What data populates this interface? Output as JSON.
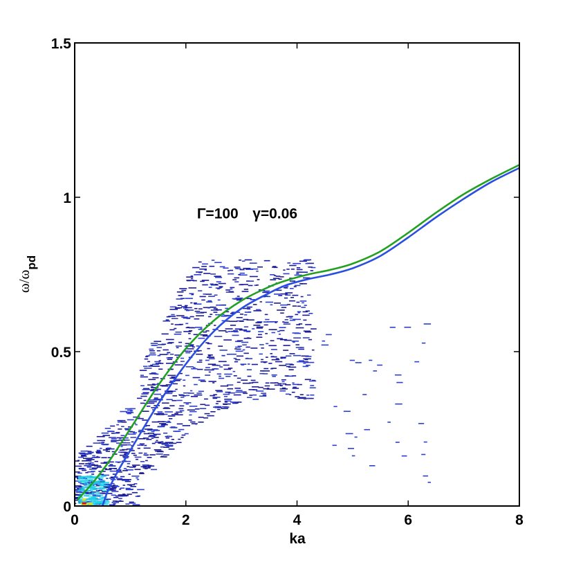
{
  "chart_data": {
    "type": "heatmap",
    "title": "",
    "xlabel": "ka",
    "ylabel": {
      "base": "ω/ω",
      "sub": "pd"
    },
    "xlim": [
      0,
      8
    ],
    "ylim": [
      0,
      1.5
    ],
    "xticks": [
      {
        "value": 0,
        "label": "0"
      },
      {
        "value": 2,
        "label": "2"
      },
      {
        "value": 4,
        "label": "4"
      },
      {
        "value": 6,
        "label": "6"
      },
      {
        "value": 8,
        "label": "8"
      }
    ],
    "yticks": [
      {
        "value": 0,
        "label": "0"
      },
      {
        "value": 0.5,
        "label": "0.5"
      },
      {
        "value": 1,
        "label": "1"
      },
      {
        "value": 1.5,
        "label": "1.5"
      }
    ],
    "grid": false,
    "annotations": [
      {
        "text": "Γ=100",
        "x": 2.2,
        "y": 0.95
      },
      {
        "text": "γ=0.06",
        "x": 3.2,
        "y": 0.95
      }
    ],
    "colors": {
      "line_green": "#22a022",
      "line_blue": "#2a4ee0",
      "cloud_dark": "#1a1a9a",
      "cloud_mid": "#2b3fd0",
      "hot_cyan": "#22d0e8",
      "hot_yellow": "#e8e020",
      "hot_red": "#e01010"
    },
    "series": [
      {
        "color": "green",
        "x": [
          0.05,
          0.3,
          0.6,
          1.0,
          1.5,
          2.0,
          2.5,
          3.0,
          3.5,
          3.8,
          4.2,
          4.6,
          5.0,
          5.5,
          6.0,
          6.5,
          7.0,
          7.5,
          8.0
        ],
        "y": [
          0.02,
          0.07,
          0.14,
          0.25,
          0.39,
          0.51,
          0.6,
          0.665,
          0.71,
          0.73,
          0.75,
          0.765,
          0.785,
          0.825,
          0.885,
          0.95,
          1.01,
          1.06,
          1.105
        ]
      },
      {
        "color": "blue",
        "x": [
          0.5,
          0.6,
          0.8,
          1.0,
          1.5,
          2.0,
          2.5,
          3.0,
          3.5,
          3.8,
          4.2,
          4.6,
          5.0,
          5.5,
          6.0,
          6.5,
          7.0,
          7.5,
          8.0
        ],
        "y": [
          0.0,
          0.05,
          0.12,
          0.18,
          0.33,
          0.46,
          0.565,
          0.64,
          0.69,
          0.715,
          0.735,
          0.75,
          0.77,
          0.81,
          0.87,
          0.935,
          0.995,
          1.05,
          1.095
        ]
      }
    ]
  }
}
